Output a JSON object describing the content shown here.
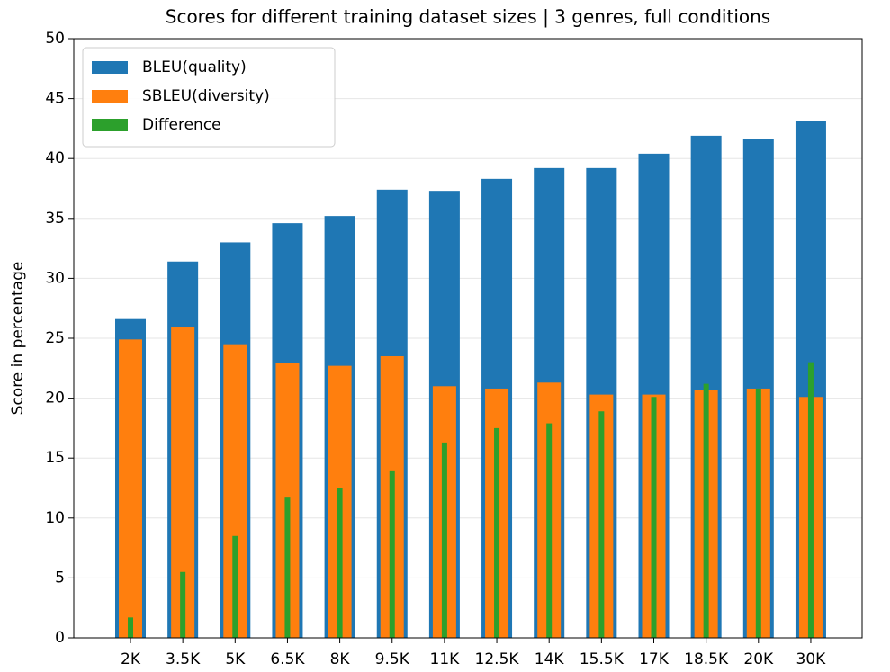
{
  "chart_data": {
    "type": "bar",
    "title": "Scores for different training dataset sizes | 3 genres, full conditions",
    "ylabel": "Score in percentage",
    "categories": [
      "2K",
      "3.5K",
      "5K",
      "6.5K",
      "8K",
      "9.5K",
      "11K",
      "12.5K",
      "14K",
      "15.5K",
      "17K",
      "18.5K",
      "20K",
      "30K"
    ],
    "series": [
      {
        "name": "BLEU(quality)",
        "color": "#1f77b4",
        "values": [
          26.6,
          31.4,
          33.0,
          34.6,
          35.2,
          37.4,
          37.3,
          38.3,
          39.2,
          39.2,
          40.4,
          41.9,
          41.6,
          43.1
        ]
      },
      {
        "name": "SBLEU(diversity)",
        "color": "#ff7f0e",
        "values": [
          24.9,
          25.9,
          24.5,
          22.9,
          22.7,
          23.5,
          21.0,
          20.8,
          21.3,
          20.3,
          20.3,
          20.7,
          20.8,
          20.1
        ]
      },
      {
        "name": "Difference",
        "color": "#2ca02c",
        "values": [
          1.7,
          5.5,
          8.5,
          11.7,
          12.5,
          13.9,
          16.3,
          17.5,
          17.9,
          18.9,
          20.1,
          21.2,
          20.8,
          23.0
        ]
      }
    ],
    "ylim": [
      0,
      50
    ],
    "yticks": [
      0,
      5,
      10,
      15,
      20,
      25,
      30,
      35,
      40,
      45,
      50
    ],
    "grid": true,
    "legend": "upper left"
  }
}
